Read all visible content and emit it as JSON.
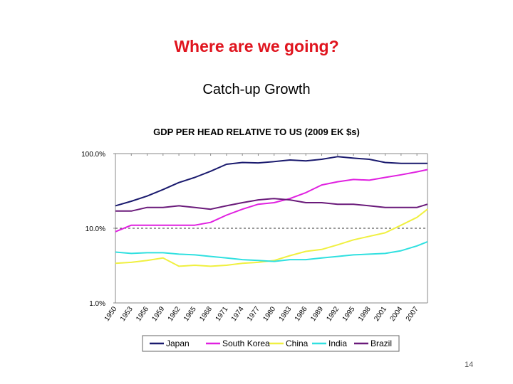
{
  "slide": {
    "title": "Where are we going?",
    "subtitle": "Catch-up Growth",
    "page_number": "14"
  },
  "chart_data": {
    "type": "line",
    "title": "GDP PER HEAD RELATIVE TO US (2009 EK $s)",
    "y_scale": "log",
    "ylim": [
      0.01,
      1.0
    ],
    "y_ticks": [
      {
        "value": 1.0,
        "label": "100.0%"
      },
      {
        "value": 0.1,
        "label": "10.0%"
      },
      {
        "value": 0.01,
        "label": "1.0%"
      }
    ],
    "xlim": [
      1950,
      2009
    ],
    "x_ticks": [
      "1950",
      "1953",
      "1956",
      "1959",
      "1962",
      "1965",
      "1968",
      "1971",
      "1974",
      "1977",
      "1980",
      "1983",
      "1986",
      "1989",
      "1992",
      "1995",
      "1998",
      "2001",
      "2004",
      "2007"
    ],
    "reference_line": {
      "value": 0.1,
      "style": "dashed"
    },
    "grid": false,
    "legend_position": "bottom",
    "x": [
      1950,
      1953,
      1956,
      1959,
      1962,
      1965,
      1968,
      1971,
      1974,
      1977,
      1980,
      1983,
      1986,
      1989,
      1992,
      1995,
      1998,
      2001,
      2004,
      2007,
      2009
    ],
    "series": [
      {
        "name": "Japan",
        "color": "#1a1a6e",
        "values": [
          0.2,
          0.23,
          0.27,
          0.33,
          0.41,
          0.48,
          0.58,
          0.72,
          0.76,
          0.75,
          0.78,
          0.82,
          0.8,
          0.84,
          0.91,
          0.87,
          0.84,
          0.76,
          0.74,
          0.74,
          0.74
        ]
      },
      {
        "name": "South Korea",
        "color": "#e020e0",
        "values": [
          0.09,
          0.11,
          0.11,
          0.11,
          0.11,
          0.11,
          0.12,
          0.15,
          0.18,
          0.21,
          0.22,
          0.25,
          0.3,
          0.38,
          0.42,
          0.45,
          0.44,
          0.48,
          0.52,
          0.57,
          0.61
        ]
      },
      {
        "name": "China",
        "color": "#f0f040",
        "values": [
          0.034,
          0.035,
          0.037,
          0.04,
          0.031,
          0.032,
          0.031,
          0.032,
          0.034,
          0.035,
          0.037,
          0.043,
          0.049,
          0.052,
          0.06,
          0.07,
          0.078,
          0.087,
          0.11,
          0.14,
          0.18
        ]
      },
      {
        "name": "India",
        "color": "#30e0e0",
        "values": [
          0.048,
          0.046,
          0.047,
          0.047,
          0.045,
          0.044,
          0.042,
          0.04,
          0.038,
          0.037,
          0.036,
          0.038,
          0.038,
          0.04,
          0.042,
          0.044,
          0.045,
          0.046,
          0.05,
          0.058,
          0.066
        ]
      },
      {
        "name": "Brazil",
        "color": "#6a1a7a",
        "values": [
          0.17,
          0.17,
          0.19,
          0.19,
          0.2,
          0.19,
          0.18,
          0.2,
          0.22,
          0.24,
          0.25,
          0.24,
          0.22,
          0.22,
          0.21,
          0.21,
          0.2,
          0.19,
          0.19,
          0.19,
          0.21
        ]
      }
    ]
  }
}
